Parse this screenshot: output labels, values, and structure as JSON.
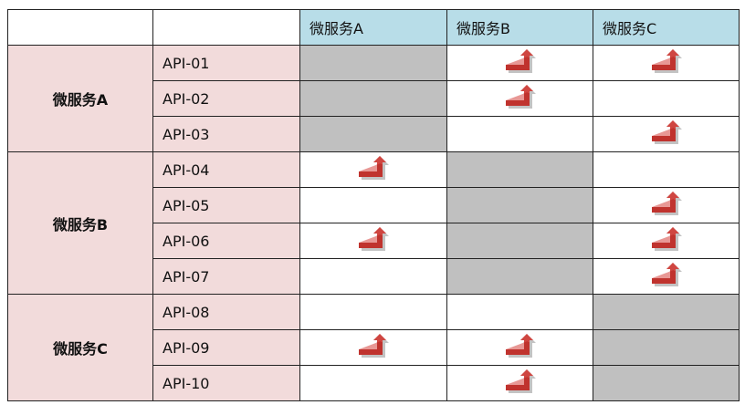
{
  "header": {
    "corner": "",
    "api_col": "",
    "services": [
      "微服务A",
      "微服务B",
      "微服务C"
    ]
  },
  "groups": [
    {
      "label": "微服务A",
      "apis": [
        {
          "name": "API-01",
          "calls": [
            "self",
            "call",
            "call"
          ]
        },
        {
          "name": "API-02",
          "calls": [
            "self",
            "call",
            "none"
          ]
        },
        {
          "name": "API-03",
          "calls": [
            "self",
            "none",
            "call"
          ]
        }
      ]
    },
    {
      "label": "微服务B",
      "apis": [
        {
          "name": "API-04",
          "calls": [
            "call",
            "self",
            "none"
          ]
        },
        {
          "name": "API-05",
          "calls": [
            "none",
            "self",
            "call"
          ]
        },
        {
          "name": "API-06",
          "calls": [
            "call",
            "self",
            "call"
          ]
        },
        {
          "name": "API-07",
          "calls": [
            "none",
            "self",
            "call"
          ]
        }
      ]
    },
    {
      "label": "微服务C",
      "apis": [
        {
          "name": "API-08",
          "calls": [
            "none",
            "none",
            "self"
          ]
        },
        {
          "name": "API-09",
          "calls": [
            "call",
            "call",
            "self"
          ]
        },
        {
          "name": "API-10",
          "calls": [
            "none",
            "call",
            "self"
          ]
        }
      ]
    }
  ],
  "icons": {
    "call": "turn-up-arrow-icon"
  },
  "colors": {
    "header_bg": "#b8dde8",
    "row_header_bg": "#f2dbdb",
    "self_cell_bg": "#c0c0c0",
    "arrow": "#c0332e"
  }
}
